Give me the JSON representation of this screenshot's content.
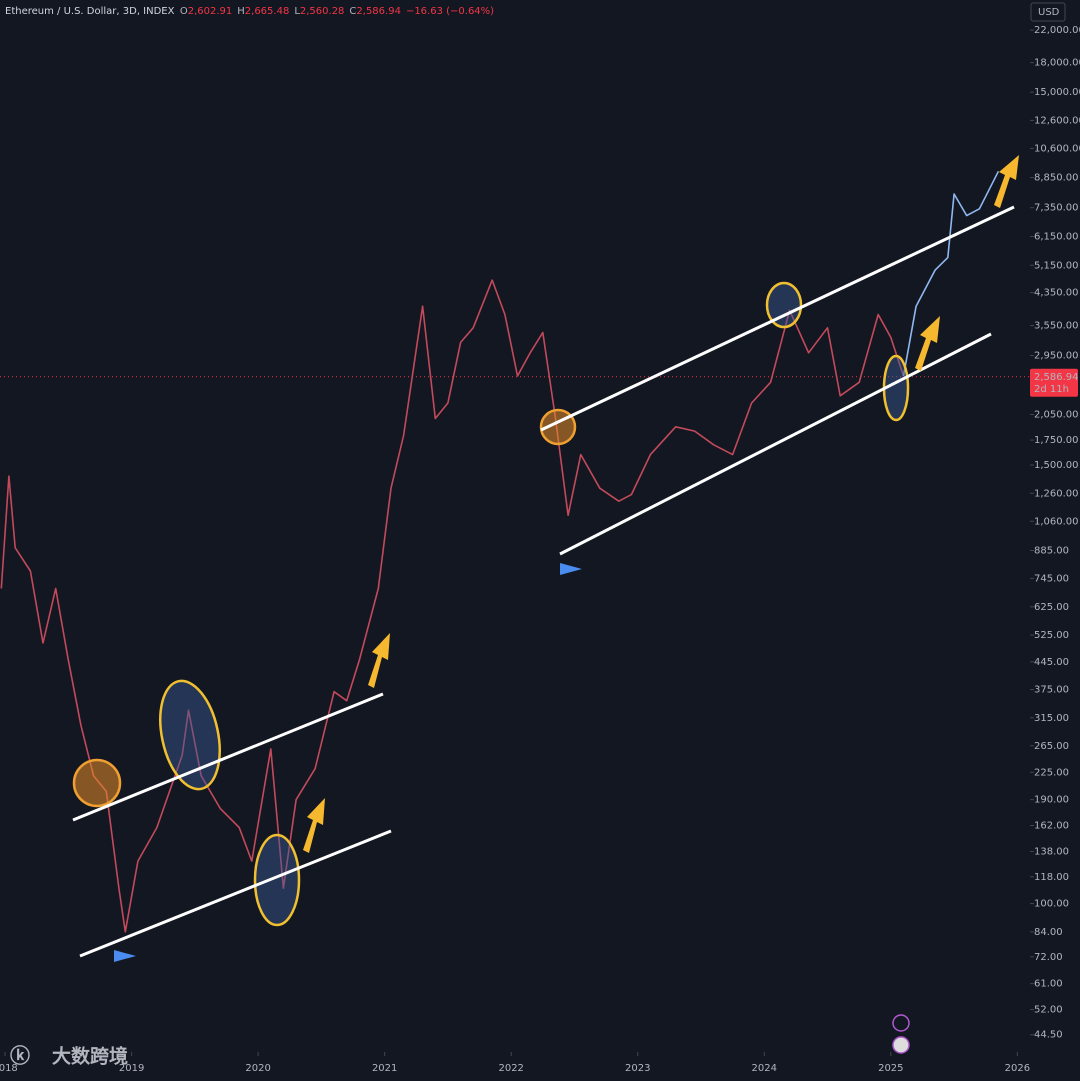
{
  "chart_data": {
    "type": "line",
    "header": {
      "symbol": "Ethereum / U.S. Dollar, 3D, INDEX",
      "fields": [
        {
          "key": "O",
          "value": "2,602.91"
        },
        {
          "key": "H",
          "value": "2,665.48"
        },
        {
          "key": "L",
          "value": "2,560.28"
        },
        {
          "key": "C",
          "value": "2,586.94"
        }
      ],
      "change": "−16.63 (−0.64%)"
    },
    "currency": "USD",
    "last_price": {
      "value": 2586.94,
      "label": "2,586.94"
    },
    "countdown": "2d 11h",
    "watermark": "大数跨境",
    "log_scale": true,
    "xlim": [
      2017.96,
      2026.1
    ],
    "xticks": [
      2018,
      2019,
      2020,
      2021,
      2022,
      2023,
      2024,
      2025,
      2026
    ],
    "ylim": [
      40,
      26500
    ],
    "yticks": [
      {
        "value": 22000,
        "label": "22,000.00"
      },
      {
        "value": 18000,
        "label": "18,000.00"
      },
      {
        "value": 15000,
        "label": "15,000.00"
      },
      {
        "value": 12600,
        "label": "12,600.00"
      },
      {
        "value": 10600,
        "label": "10,600.00"
      },
      {
        "value": 8850,
        "label": "8,850.00"
      },
      {
        "value": 7350,
        "label": "7,350.00"
      },
      {
        "value": 6150,
        "label": "6,150.00"
      },
      {
        "value": 5150,
        "label": "5,150.00"
      },
      {
        "value": 4350,
        "label": "4,350.00"
      },
      {
        "value": 3550,
        "label": "3,550.00"
      },
      {
        "value": 2950,
        "label": "2,950.00"
      },
      {
        "value": 2050,
        "label": "2,050.00"
      },
      {
        "value": 1750,
        "label": "1,750.00"
      },
      {
        "value": 1500,
        "label": "1,500.00"
      },
      {
        "value": 1260,
        "label": "1,260.00"
      },
      {
        "value": 1060,
        "label": "1,060.00"
      },
      {
        "value": 885,
        "label": "885.00"
      },
      {
        "value": 745,
        "label": "745.00"
      },
      {
        "value": 625,
        "label": "625.00"
      },
      {
        "value": 525,
        "label": "525.00"
      },
      {
        "value": 445,
        "label": "445.00"
      },
      {
        "value": 375,
        "label": "375.00"
      },
      {
        "value": 315,
        "label": "315.00"
      },
      {
        "value": 265,
        "label": "265.00"
      },
      {
        "value": 225,
        "label": "225.00"
      },
      {
        "value": 190,
        "label": "190.00"
      },
      {
        "value": 162,
        "label": "162.00"
      },
      {
        "value": 138,
        "label": "138.00"
      },
      {
        "value": 118,
        "label": "118.00"
      },
      {
        "value": 100,
        "label": "100.00"
      },
      {
        "value": 84,
        "label": "84.00"
      },
      {
        "value": 72,
        "label": "72.00"
      },
      {
        "value": 61,
        "label": "61.00"
      },
      {
        "value": 52,
        "label": "52.00"
      },
      {
        "value": 44.5,
        "label": "44.50"
      }
    ],
    "series": [
      {
        "color": "#c24a5a",
        "x": [
          2017.97,
          2018.03,
          2018.08,
          2018.2,
          2018.3,
          2018.4,
          2018.5,
          2018.6,
          2018.7,
          2018.8,
          2018.9,
          2018.95,
          2019.05,
          2019.2,
          2019.4,
          2019.45,
          2019.55,
          2019.7,
          2019.85,
          2019.95,
          2020.1,
          2020.2,
          2020.3,
          2020.45,
          2020.6,
          2020.7,
          2020.8,
          2020.95,
          2021.05,
          2021.15,
          2021.3,
          2021.4,
          2021.5,
          2021.6,
          2021.7,
          2021.85,
          2021.95,
          2022.05,
          2022.15,
          2022.25,
          2022.35,
          2022.45,
          2022.55,
          2022.7,
          2022.85,
          2022.95,
          2023.1,
          2023.3,
          2023.45,
          2023.6,
          2023.75,
          2023.9,
          2024.05,
          2024.2,
          2024.35,
          2024.5,
          2024.6,
          2024.75,
          2024.9,
          2025.0,
          2025.1
        ],
        "values": [
          700,
          1400,
          900,
          780,
          500,
          700,
          450,
          300,
          220,
          200,
          110,
          84,
          130,
          160,
          250,
          330,
          220,
          180,
          160,
          130,
          260,
          110,
          190,
          230,
          370,
          350,
          450,
          700,
          1300,
          1800,
          4000,
          2000,
          2200,
          3200,
          3500,
          4700,
          3800,
          2600,
          3000,
          3400,
          2000,
          1100,
          1600,
          1300,
          1200,
          1250,
          1600,
          1900,
          1850,
          1700,
          1600,
          2200,
          2500,
          3900,
          3000,
          3500,
          2300,
          2500,
          3800,
          3300,
          2600
        ]
      },
      {
        "color": "#8fb8f0",
        "x": [
          2025.1,
          2025.2,
          2025.35,
          2025.45,
          2025.5,
          2025.6,
          2025.7,
          2025.85
        ],
        "values": [
          2600,
          4000,
          5000,
          5400,
          8000,
          7000,
          7300,
          9200
        ]
      }
    ]
  }
}
